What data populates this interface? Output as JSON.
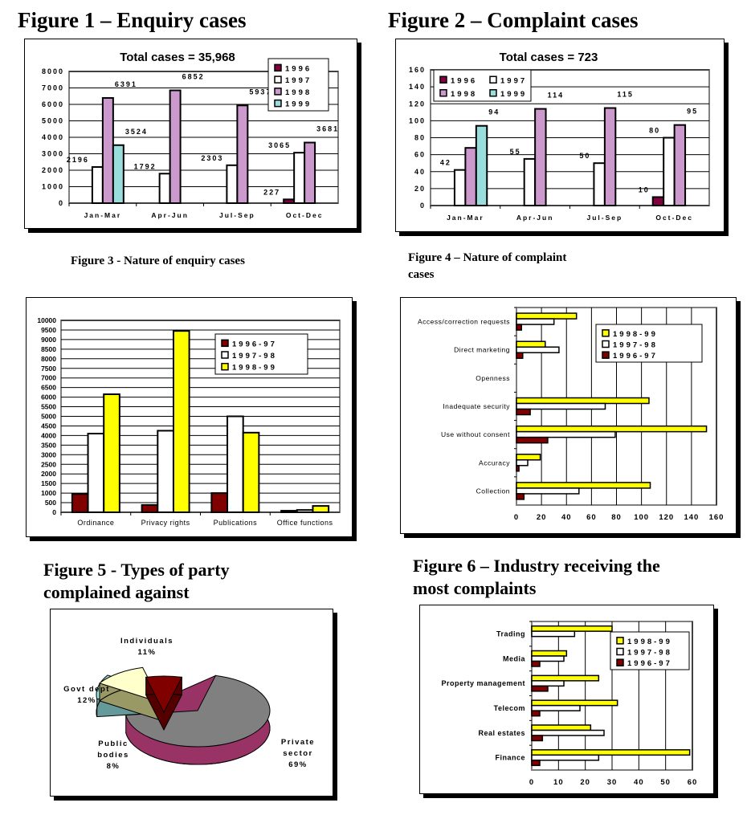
{
  "figures": {
    "fig1_title": "Figure 1 – Enquiry cases",
    "fig2_title": "Figure 2 – Complaint cases",
    "fig3_title": "Figure 3 - Nature of enquiry cases",
    "fig4_title_l1": "Figure 4 – Nature of complaint",
    "fig4_title_l2": "cases",
    "fig5_title_l1": "Figure 5 - Types of party",
    "fig5_title_l2": "complained against",
    "fig6_title_l1": "Figure 6 – Industry receiving the",
    "fig6_title_l2": "most complaints"
  },
  "chart_data": [
    {
      "type": "bar",
      "title": "Total cases = 35,968",
      "categories": [
        "Jan-Mar",
        "Apr-Jun",
        "Jul-Sep",
        "Oct-Dec"
      ],
      "ylim": [
        0,
        8000
      ],
      "ystep": 1000,
      "series": [
        {
          "name": "1996",
          "color": "#800040",
          "values": [
            null,
            null,
            null,
            227
          ]
        },
        {
          "name": "1997",
          "color": "#ffffff",
          "values": [
            2196,
            1792,
            2303,
            3065
          ]
        },
        {
          "name": "1998",
          "color": "#cc99cc",
          "values": [
            6391,
            6852,
            5937,
            3681
          ]
        },
        {
          "name": "1999",
          "color": "#99dddd",
          "values": [
            3524,
            null,
            null,
            null
          ]
        }
      ],
      "data_labels": true,
      "legend": "top-right"
    },
    {
      "type": "bar",
      "title": "Total cases = 723",
      "categories": [
        "Jan-Mar",
        "Apr-Jun",
        "Jul-Sep",
        "Oct-Dec"
      ],
      "ylim": [
        0,
        160
      ],
      "ystep": 20,
      "series": [
        {
          "name": "1996",
          "color": "#800040",
          "values": [
            null,
            null,
            null,
            10
          ]
        },
        {
          "name": "1997",
          "color": "#ffffff",
          "values": [
            42,
            55,
            50,
            80
          ]
        },
        {
          "name": "1998",
          "color": "#cc99cc",
          "values": [
            68,
            114,
            115,
            95
          ]
        },
        {
          "name": "1999",
          "color": "#99dddd",
          "values": [
            94,
            null,
            null,
            null
          ]
        }
      ],
      "data_labels": true,
      "legend": "top-left"
    },
    {
      "type": "bar",
      "title": "",
      "categories": [
        "Ordinance",
        "Privacy rights",
        "Publications",
        "Office functions"
      ],
      "ylim": [
        0,
        10000
      ],
      "ystep": 500,
      "series": [
        {
          "name": "1996-97",
          "color": "#800000",
          "values": [
            950,
            380,
            1000,
            80
          ]
        },
        {
          "name": "1997-98",
          "color": "#ffffff",
          "values": [
            4100,
            4250,
            5000,
            120
          ]
        },
        {
          "name": "1998-99",
          "color": "#ffff00",
          "values": [
            6150,
            9450,
            4150,
            330
          ]
        }
      ],
      "data_labels": false,
      "legend": "top-right"
    },
    {
      "type": "hbar",
      "title": "",
      "categories": [
        "Access/correction requests",
        "Direct marketing",
        "Openness",
        "Inadequate security",
        "Use without consent",
        "Accuracy",
        "Collection"
      ],
      "xlim": [
        0,
        160
      ],
      "xstep": 20,
      "series": [
        {
          "name": "1998-99",
          "color": "#ffff00",
          "values": [
            48,
            23,
            0,
            106,
            152,
            19,
            107
          ]
        },
        {
          "name": "1997-98",
          "color": "#ffffff",
          "values": [
            30,
            34,
            0,
            71,
            79,
            9,
            50
          ]
        },
        {
          "name": "1996-97",
          "color": "#800000",
          "values": [
            4,
            5,
            0,
            11,
            25,
            2,
            6
          ]
        }
      ],
      "legend": "top-right"
    },
    {
      "type": "pie",
      "title": "",
      "slices": [
        {
          "label": "Private sector",
          "value": 69,
          "pct": "69%",
          "color": "#808080",
          "side": "#993366"
        },
        {
          "label": "Individuals",
          "value": 11,
          "pct": "11%",
          "color": "#99dddd",
          "side": "#669999"
        },
        {
          "label": "Govt dept",
          "value": 12,
          "pct": "12%",
          "color": "#ffffcc",
          "side": "#999966"
        },
        {
          "label": "Public bodies",
          "value": 8,
          "pct": "8%",
          "color": "#800000",
          "side": "#550000"
        }
      ]
    },
    {
      "type": "hbar",
      "title": "",
      "categories": [
        "Trading",
        "Media",
        "Property management",
        "Telecom",
        "Real estates",
        "Finance"
      ],
      "xlim": [
        0,
        60
      ],
      "xstep": 10,
      "series": [
        {
          "name": "1998-99",
          "color": "#ffff00",
          "values": [
            30,
            13,
            25,
            32,
            22,
            59
          ]
        },
        {
          "name": "1997-98",
          "color": "#ffffff",
          "values": [
            16,
            12,
            12,
            18,
            27,
            25
          ]
        },
        {
          "name": "1996-97",
          "color": "#800000",
          "values": [
            0,
            3,
            6,
            3,
            4,
            3
          ]
        }
      ],
      "legend": "top-right"
    }
  ]
}
